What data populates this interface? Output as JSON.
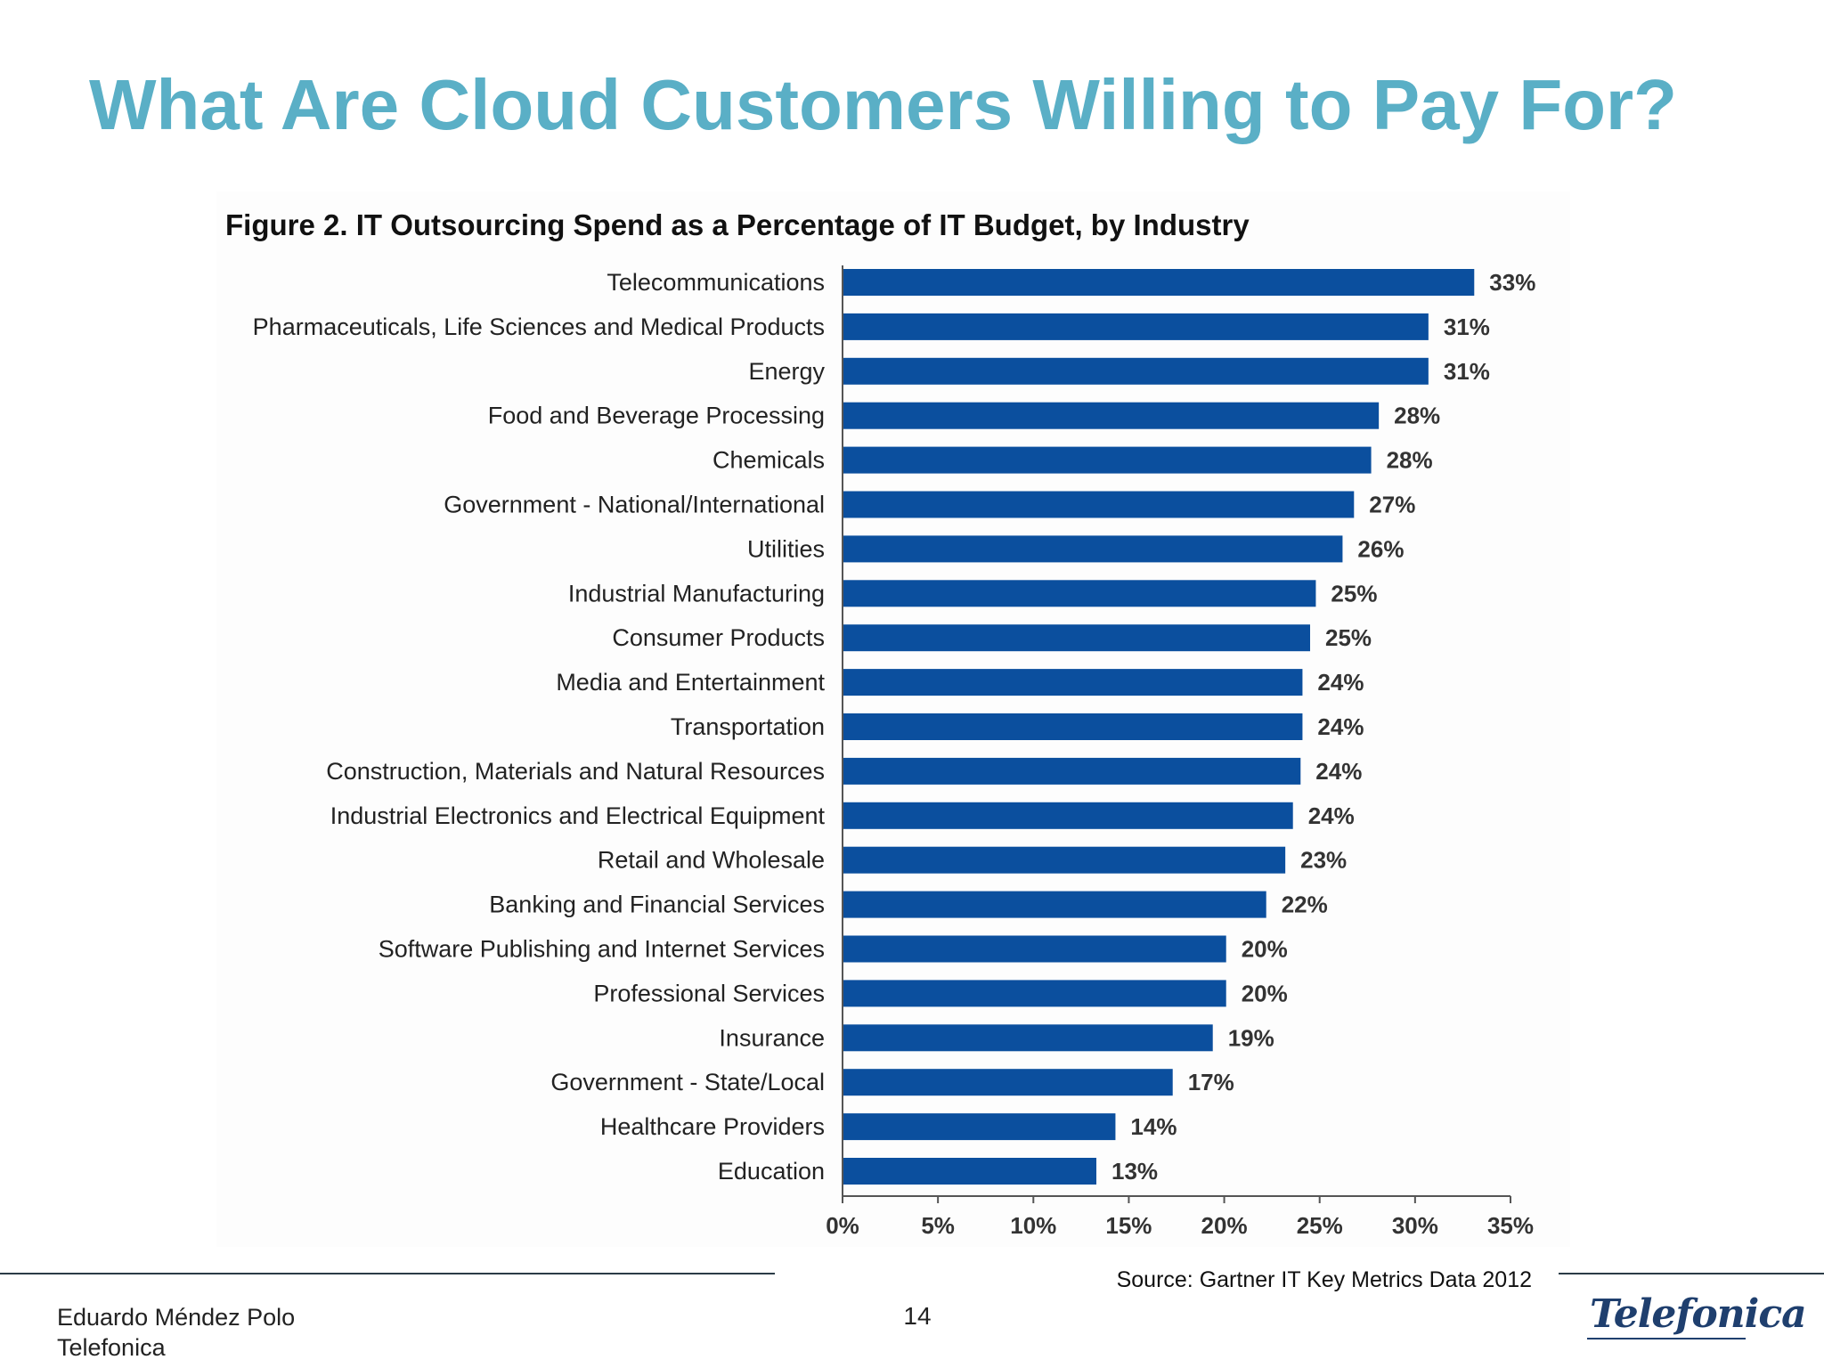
{
  "slide": {
    "title": "What Are Cloud Customers Willing to Pay For?",
    "source": "Source: Gartner IT Key Metrics Data 2012",
    "footer_author": "Eduardo Méndez Polo",
    "footer_company": "Telefonica",
    "page_number": "14",
    "logo_text": "Telefonica"
  },
  "colors": {
    "title": "#5aafc6",
    "bar": "#0b4f9e"
  },
  "chart_data": {
    "type": "bar",
    "orientation": "horizontal",
    "title": "Figure 2. IT Outsourcing Spend as a Percentage of IT Budget, by Industry",
    "xlabel": "",
    "ylabel": "",
    "xlim": [
      0,
      35
    ],
    "xticks": [
      0,
      5,
      10,
      15,
      20,
      25,
      30,
      35
    ],
    "tick_labels": [
      "0%",
      "5%",
      "10%",
      "15%",
      "20%",
      "25%",
      "30%",
      "35%"
    ],
    "categories": [
      "Telecommunications",
      "Pharmaceuticals, Life Sciences and Medical Products",
      "Energy",
      "Food and Beverage Processing",
      "Chemicals",
      "Government - National/International",
      "Utilities",
      "Industrial Manufacturing",
      "Consumer Products",
      "Media and Entertainment",
      "Transportation",
      "Construction, Materials and Natural Resources",
      "Industrial Electronics and Electrical Equipment",
      "Retail and Wholesale",
      "Banking and Financial Services",
      "Software Publishing and Internet Services",
      "Professional Services",
      "Insurance",
      "Government - State/Local",
      "Healthcare Providers",
      "Education"
    ],
    "values": [
      33.1,
      30.7,
      30.7,
      28.1,
      27.7,
      26.8,
      26.2,
      24.8,
      24.5,
      24.1,
      24.1,
      24.0,
      23.6,
      23.2,
      22.2,
      20.1,
      20.1,
      19.4,
      17.3,
      14.3,
      13.3
    ],
    "value_labels": [
      "33%",
      "31%",
      "31%",
      "28%",
      "28%",
      "27%",
      "26%",
      "25%",
      "25%",
      "24%",
      "24%",
      "24%",
      "24%",
      "23%",
      "22%",
      "20%",
      "20%",
      "19%",
      "17%",
      "14%",
      "13%"
    ],
    "grid": false,
    "legend": "none"
  }
}
